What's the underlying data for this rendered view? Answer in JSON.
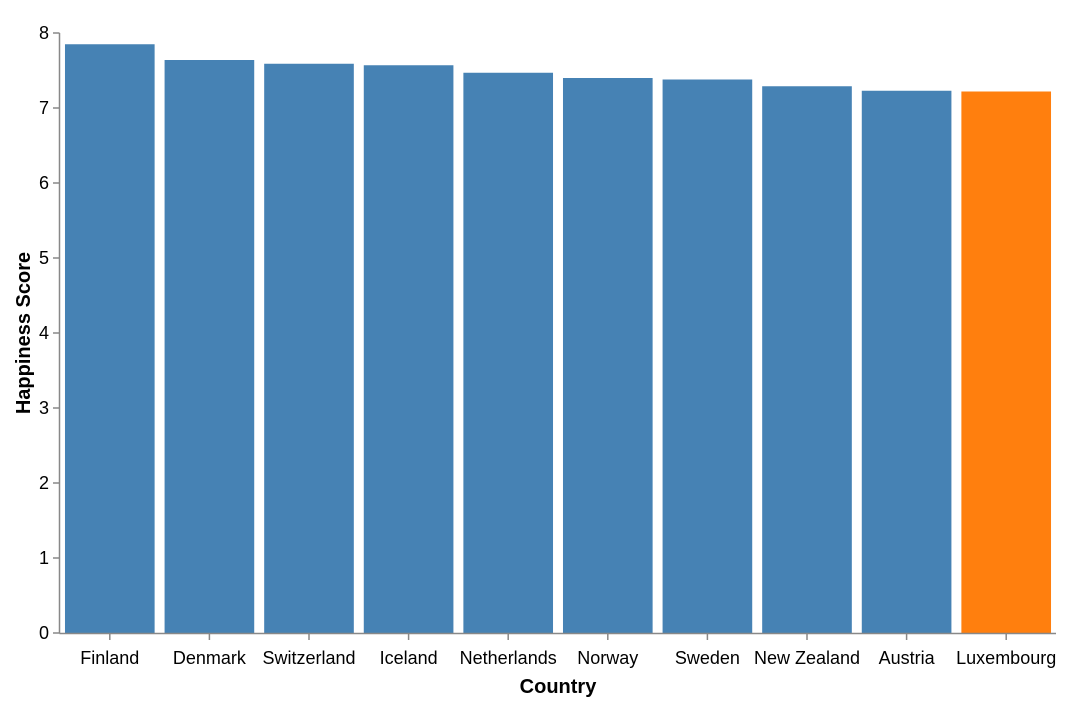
{
  "chart_data": {
    "type": "bar",
    "title": "",
    "xlabel": "Country",
    "ylabel": "Happiness Score",
    "ylim": [
      0,
      8
    ],
    "yticks": [
      0,
      1,
      2,
      3,
      4,
      5,
      6,
      7,
      8
    ],
    "grid": false,
    "categories": [
      "Finland",
      "Denmark",
      "Switzerland",
      "Iceland",
      "Netherlands",
      "Norway",
      "Sweden",
      "New Zealand",
      "Austria",
      "Luxembourg"
    ],
    "values": [
      7.85,
      7.64,
      7.59,
      7.57,
      7.47,
      7.4,
      7.38,
      7.29,
      7.23,
      7.22
    ],
    "colors": {
      "default": "#4682b4",
      "highlight": "#ff7f0e",
      "axis": "#888888"
    },
    "highlight_categories": [
      "Luxembourg"
    ]
  }
}
